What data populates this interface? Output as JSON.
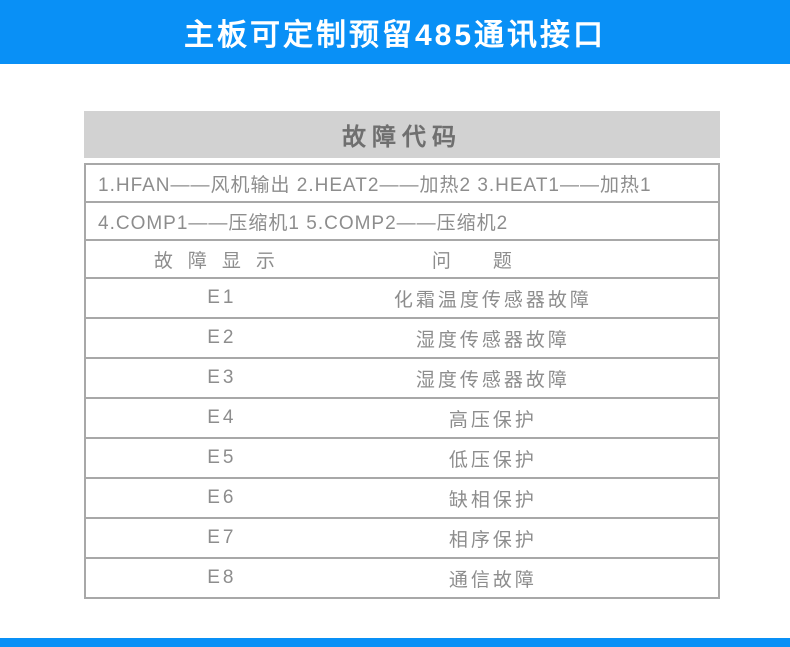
{
  "header": {
    "title": "主板可定制预留485通讯接口"
  },
  "table": {
    "title": "故障代码",
    "notes": [
      "1.HFAN——风机输出 2.HEAT2——加热2 3.HEAT1——加热1",
      "4.COMP1——压缩机1 5.COMP2——压缩机2"
    ],
    "columns": [
      "故障显示",
      "问题"
    ],
    "rows": [
      {
        "code": "E1",
        "issue": "化霜温度传感器故障"
      },
      {
        "code": "E2",
        "issue": "湿度传感器故障"
      },
      {
        "code": "E3",
        "issue": "湿度传感器故障"
      },
      {
        "code": "E4",
        "issue": "高压保护"
      },
      {
        "code": "E5",
        "issue": "低压保护"
      },
      {
        "code": "E6",
        "issue": "缺相保护"
      },
      {
        "code": "E7",
        "issue": "相序保护"
      },
      {
        "code": "E8",
        "issue": "通信故障"
      }
    ]
  },
  "colors": {
    "accent_blue": "#0990f6",
    "panel_header_bg": "#d2d2d2",
    "border_gray": "#a8a8a8",
    "text_gray": "#8d8d8d"
  }
}
